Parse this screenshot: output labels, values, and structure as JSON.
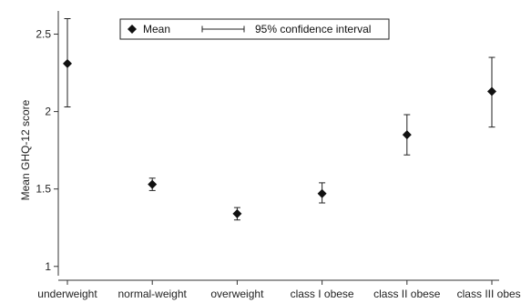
{
  "chart_data": {
    "type": "scatter",
    "title": "",
    "xlabel": "",
    "ylabel": "Mean GHQ-12 score",
    "categories": [
      "underweight",
      "normal-weight",
      "overweight",
      "class I obese",
      "class II obese",
      "class III obese"
    ],
    "series": [
      {
        "name": "Mean",
        "values": [
          2.31,
          1.53,
          1.34,
          1.47,
          1.85,
          2.13
        ],
        "ci_low": [
          2.03,
          1.49,
          1.3,
          1.41,
          1.72,
          1.9
        ],
        "ci_high": [
          2.6,
          1.57,
          1.38,
          1.54,
          1.98,
          2.35
        ]
      }
    ],
    "yticks": [
      "1",
      "1.5",
      "2",
      "2.5"
    ],
    "ylim": [
      0.94,
      2.65
    ],
    "grid": false,
    "legend": {
      "placement": "top",
      "mean_label": "Mean",
      "ci_label": "95% confidence interval"
    },
    "colors": {
      "marker": "#111111",
      "axis": "#333333"
    }
  }
}
